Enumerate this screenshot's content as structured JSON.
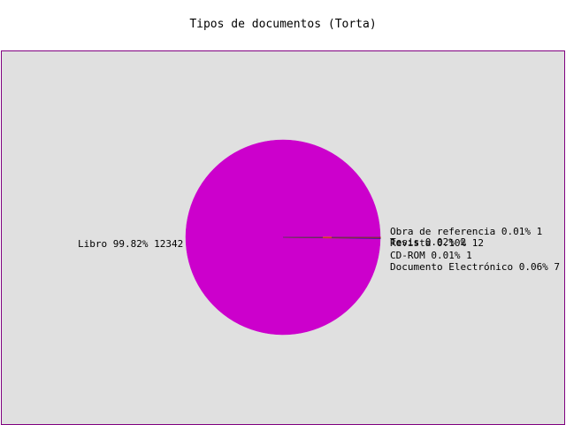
{
  "chart_data": {
    "type": "pie",
    "title": "Tipos de documentos (Torta)",
    "slices": [
      {
        "name": "Libro",
        "percent_label": "99.82%",
        "value": 12342,
        "color": "#cc00cc"
      },
      {
        "name": "Obra de referencia",
        "percent_label": "0.01%",
        "value": 1,
        "color": "#ff6600"
      },
      {
        "name": "Tesis",
        "percent_label": "0.02%",
        "value": 2,
        "color": "#996633"
      },
      {
        "name": "Revista",
        "percent_label": "0.10%",
        "value": 12,
        "color": "#0000cc"
      },
      {
        "name": "CD-ROM",
        "percent_label": "0.01%",
        "value": 1,
        "color": "#999900"
      },
      {
        "name": "Documento Electrónico",
        "percent_label": "0.06%",
        "value": 7,
        "color": "#cc0000"
      }
    ],
    "labels": [
      "Libro 99.82% 12342",
      "Obra de referencia 0.01% 1",
      "Tesis 0.02% 2",
      "Revista 0.10% 12",
      "CD-ROM 0.01% 1",
      "Documento Electrónico 0.06% 7"
    ],
    "background_color": "#e0e0e0",
    "border_color": "#800080"
  }
}
